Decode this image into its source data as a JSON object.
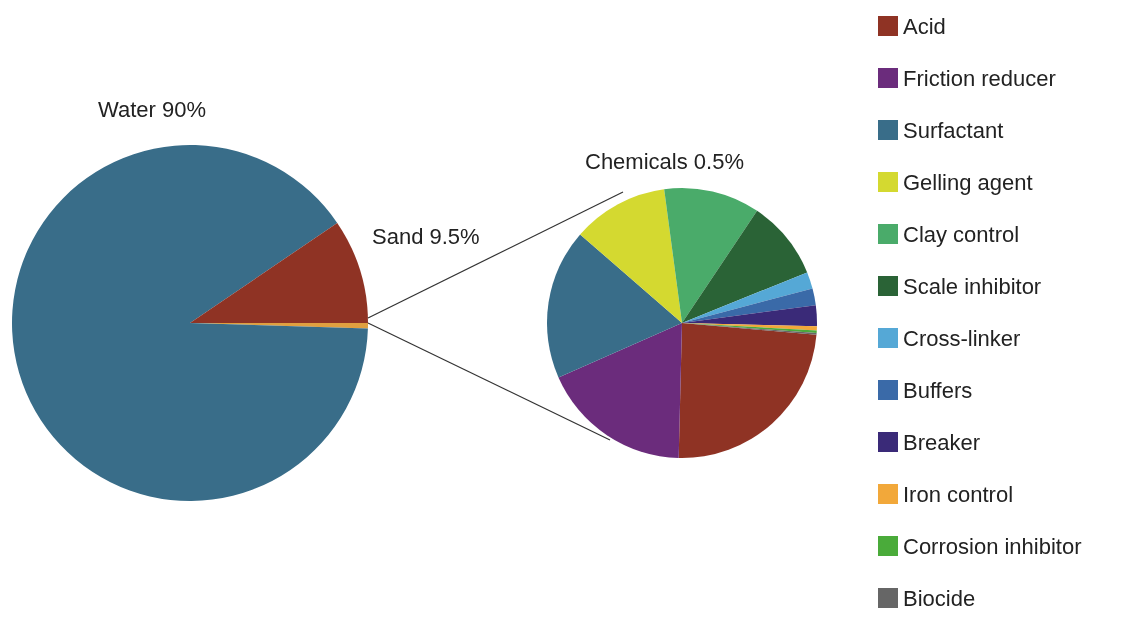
{
  "chart_data": [
    {
      "type": "pie",
      "categories": [
        "Chemicals",
        "Water",
        "Sand"
      ],
      "values": [
        0.5,
        90,
        9.5
      ],
      "value_labels": [
        "0.5%",
        "90%",
        "9.5%"
      ],
      "colors": [
        "#e0a040",
        "#396d89",
        "#8f3324"
      ],
      "legend": false
    },
    {
      "type": "pie",
      "categories": [
        "Acid",
        "Friction reducer",
        "Surfactant",
        "Gelling agent",
        "Clay control",
        "Scale inhibitor",
        "Cross-linker",
        "Buffers",
        "Breaker",
        "Iron control",
        "Corrosion inhibitor",
        "Biocide"
      ],
      "values": [
        24,
        18,
        18,
        11.5,
        11.5,
        9.5,
        2,
        2,
        2.5,
        0.5,
        0.3,
        0.2
      ],
      "colors": [
        "#8f3324",
        "#6b2c7c",
        "#396d89",
        "#d4d930",
        "#4aab6a",
        "#2a6336",
        "#55a8d6",
        "#3a6aa8",
        "#3a2a78",
        "#f2a83a",
        "#4aab3a",
        "#666666"
      ],
      "legend": "right"
    }
  ]
}
